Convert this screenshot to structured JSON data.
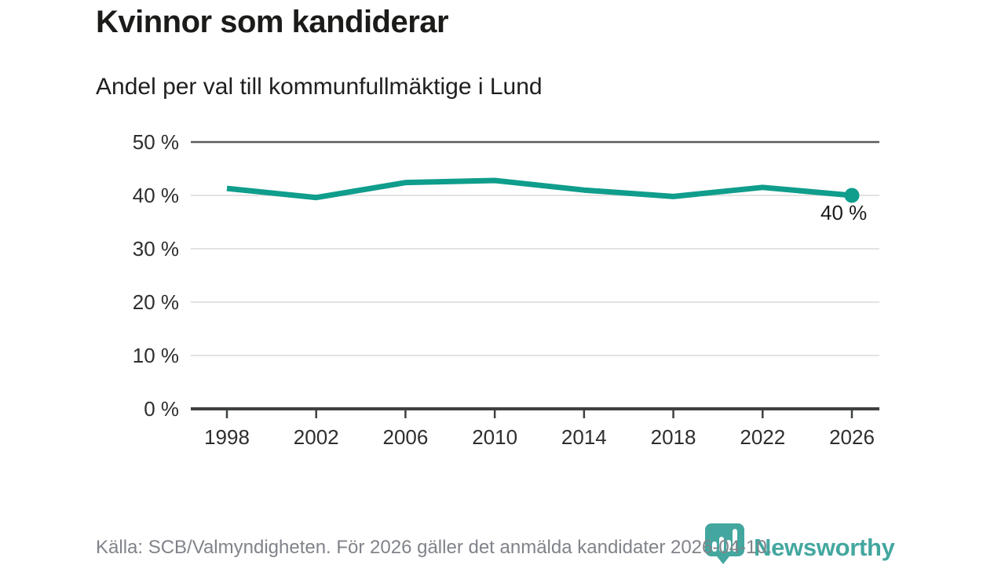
{
  "header": {
    "title": "Kvinnor som kandiderar",
    "subtitle": "Andel per val till kommunfullmäktige i Lund"
  },
  "chart_data": {
    "type": "line",
    "x": [
      1998,
      2002,
      2006,
      2010,
      2014,
      2018,
      2022,
      2026
    ],
    "xtick_labels": [
      "1998",
      "2002",
      "2006",
      "2010",
      "2014",
      "2018",
      "2022",
      "2026"
    ],
    "values": [
      41.3,
      39.6,
      42.4,
      42.8,
      41.0,
      39.8,
      41.5,
      40
    ],
    "ylim": [
      0,
      50
    ],
    "yticks": [
      0,
      10,
      20,
      30,
      40,
      50
    ],
    "ytick_labels": [
      "0 %",
      "10 %",
      "20 %",
      "30 %",
      "40 %",
      "50 %"
    ],
    "end_label": "40 %",
    "grid": true,
    "legend": "none",
    "line_color": "#0f9d8c",
    "marker": "circle-on-last-point"
  },
  "footer": {
    "source_text": "Källa: SCB/Valmyndigheten. För 2026 gäller det anmälda kandidater 2026-04-10.",
    "logo_text": "Newsworthy",
    "logo_icon": "newsworthy-pin-barchart-icon"
  },
  "colors": {
    "accent_teal": "#0f9d8c",
    "logo_teal": "#43a79f",
    "grid_light": "#e3e3e3",
    "grid_top": "#59595b",
    "axis": "#3f4042",
    "tick_text": "#2e2e2e",
    "title_text": "#1b1b1a",
    "footer_text": "#80838a",
    "value_label_text": "#1b1b1a"
  }
}
